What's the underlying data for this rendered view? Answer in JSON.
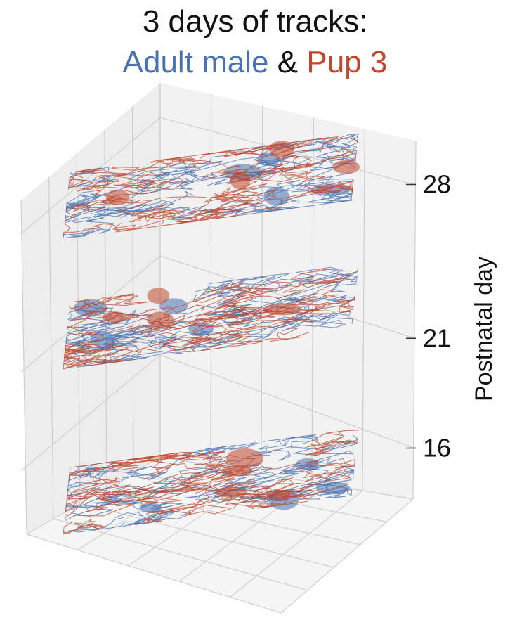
{
  "title": {
    "line1": "3 days of tracks:",
    "series_a": "Adult male",
    "joiner": "&",
    "series_b": "Pup 3"
  },
  "colors": {
    "series_a": "#4a72b2",
    "series_b": "#c0472c",
    "pane": "#ededed",
    "grid": "#cfcfcf",
    "text": "#111111"
  },
  "chart_data": {
    "type": "3d-trajectory",
    "zlabel": "Postnatal day",
    "zticks": [
      16,
      21,
      28
    ],
    "grid": true,
    "series": [
      {
        "name": "Adult male",
        "color": "#4a72b2",
        "days": [
          16,
          21,
          28
        ]
      },
      {
        "name": "Pup 3",
        "color": "#c0472c",
        "days": [
          16,
          21,
          28
        ]
      }
    ]
  }
}
